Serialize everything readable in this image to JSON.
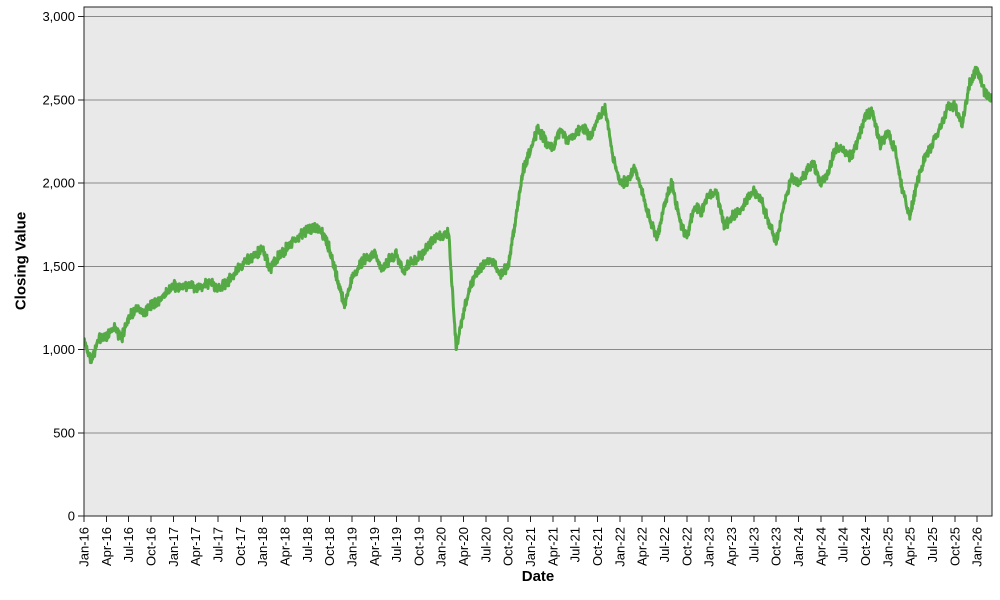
{
  "chart_data": {
    "type": "line",
    "title": "",
    "xlabel": "Date",
    "ylabel": "Closing Value",
    "legend_position": "none",
    "grid": "horizontal-only",
    "plot_background": "#e9e9e9",
    "gridline_color": "#8a8a8a",
    "border_color": "#222222",
    "tick_color": "#222222",
    "text_color": "#000000",
    "line_color": "#55aa46",
    "ylim": [
      0,
      3060
    ],
    "yticks": [
      0,
      500,
      1000,
      1500,
      2000,
      2500,
      3000
    ],
    "ytick_labels": [
      "0",
      "500",
      "1,000",
      "1,500",
      "2,000",
      "2,500",
      "3,000"
    ],
    "xtick_labels": [
      "Jan-16",
      "Apr-16",
      "Jul-16",
      "Oct-16",
      "Jan-17",
      "Apr-17",
      "Jul-17",
      "Oct-17",
      "Jan-18",
      "Apr-18",
      "Jul-18",
      "Oct-18",
      "Jan-19",
      "Apr-19",
      "Jul-19",
      "Oct-19",
      "Jan-20",
      "Apr-20",
      "Jul-20",
      "Oct-20",
      "Jan-21",
      "Apr-21",
      "Jul-21",
      "Oct-21",
      "Jan-22",
      "Apr-22",
      "Jul-22",
      "Oct-22",
      "Jan-23",
      "Apr-23",
      "Jul-23",
      "Oct-23",
      "Jan-24",
      "Apr-24",
      "Jul-24",
      "Oct-24",
      "Jan-25",
      "Apr-25",
      "Jul-25",
      "Oct-25",
      "Jan-26"
    ],
    "xtick_month_index": [
      0,
      3,
      6,
      9,
      12,
      15,
      18,
      21,
      24,
      27,
      30,
      33,
      36,
      39,
      42,
      45,
      48,
      51,
      54,
      57,
      60,
      63,
      66,
      69,
      72,
      75,
      78,
      81,
      84,
      87,
      90,
      93,
      96,
      99,
      102,
      105,
      108,
      111,
      114,
      117,
      120
    ],
    "x_months_total": 122,
    "series": [
      {
        "name": "Closing Value",
        "cadence": "monthly-anchors",
        "start": "Jan-16",
        "end": "Mar-26",
        "values": [
          1050,
          940,
          1060,
          1080,
          1140,
          1060,
          1200,
          1240,
          1220,
          1270,
          1290,
          1340,
          1380,
          1370,
          1390,
          1360,
          1390,
          1400,
          1370,
          1390,
          1440,
          1500,
          1540,
          1560,
          1610,
          1480,
          1550,
          1600,
          1650,
          1680,
          1720,
          1740,
          1700,
          1600,
          1430,
          1270,
          1420,
          1510,
          1550,
          1580,
          1480,
          1540,
          1570,
          1470,
          1530,
          1550,
          1610,
          1660,
          1690,
          1700,
          1000,
          1220,
          1400,
          1470,
          1540,
          1520,
          1450,
          1500,
          1780,
          2080,
          2200,
          2330,
          2250,
          2200,
          2330,
          2250,
          2290,
          2340,
          2270,
          2380,
          2450,
          2180,
          2000,
          2010,
          2090,
          1950,
          1780,
          1670,
          1870,
          2000,
          1780,
          1670,
          1860,
          1830,
          1930,
          1940,
          1740,
          1790,
          1820,
          1900,
          1960,
          1900,
          1760,
          1650,
          1850,
          2030,
          2000,
          2060,
          2120,
          2000,
          2060,
          2210,
          2200,
          2160,
          2260,
          2400,
          2420,
          2230,
          2300,
          2200,
          1950,
          1800,
          2020,
          2150,
          2230,
          2320,
          2450,
          2470,
          2350,
          2600,
          2690,
          2540,
          2500
        ]
      }
    ]
  }
}
